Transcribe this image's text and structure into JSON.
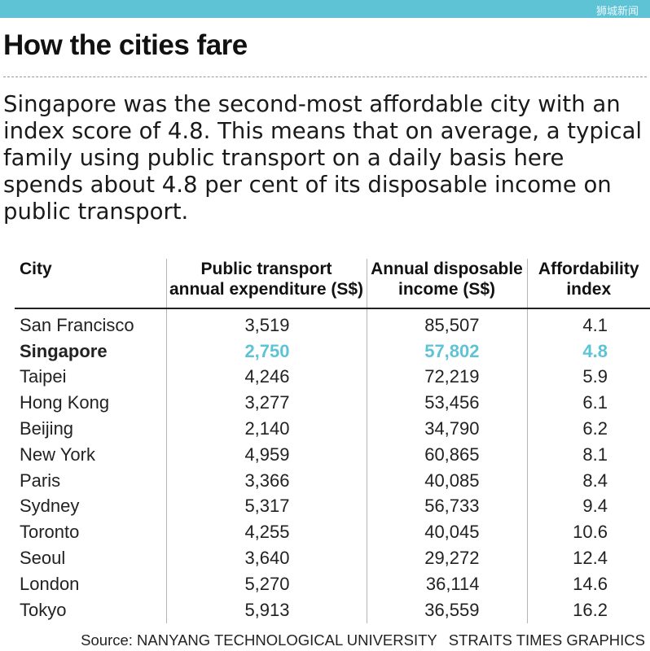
{
  "watermark": "狮城新闻",
  "title": "How the cities fare",
  "description": "Singapore was the second-most affordable city with an index score of 4.8. This means that on average, a typical family using public transport on a daily basis here spends about 4.8 per cent of its disposable income on public transport.",
  "source": "Source: NANYANG TECHNOLOGICAL UNIVERSITY",
  "credit": "STRAITS TIMES GRAPHICS",
  "colors": {
    "accent": "#5fc3d6",
    "text": "#1a1a1a",
    "rule": "#222222"
  },
  "chart_data": {
    "type": "table",
    "title": "How the cities fare",
    "columns": [
      "City",
      "Public transport annual expenditure (S$)",
      "Annual disposable income (S$)",
      "Affordability index"
    ],
    "header_lines": [
      [
        "City"
      ],
      [
        "Public transport",
        "annual expenditure (S$)"
      ],
      [
        "Annual disposable",
        "income (S$)"
      ],
      [
        "Affordability",
        "index"
      ]
    ],
    "highlight_row": 1,
    "rows": [
      [
        "San Francisco",
        "3,519",
        "85,507",
        "4.1"
      ],
      [
        "Singapore",
        "2,750",
        "57,802",
        "4.8"
      ],
      [
        "Taipei",
        "4,246",
        "72,219",
        "5.9"
      ],
      [
        "Hong Kong",
        "3,277",
        "53,456",
        "6.1"
      ],
      [
        "Beijing",
        "2,140",
        "34,790",
        "6.2"
      ],
      [
        "New York",
        "4,959",
        "60,865",
        "8.1"
      ],
      [
        "Paris",
        "3,366",
        "40,085",
        "8.4"
      ],
      [
        "Sydney",
        "5,317",
        "56,733",
        "9.4"
      ],
      [
        "Toronto",
        "4,255",
        "40,045",
        "10.6"
      ],
      [
        "Seoul",
        "3,640",
        "29,272",
        "12.4"
      ],
      [
        "London",
        "5,270",
        "36,114",
        "14.6"
      ],
      [
        "Tokyo",
        "5,913",
        "36,559",
        "16.2"
      ]
    ]
  }
}
